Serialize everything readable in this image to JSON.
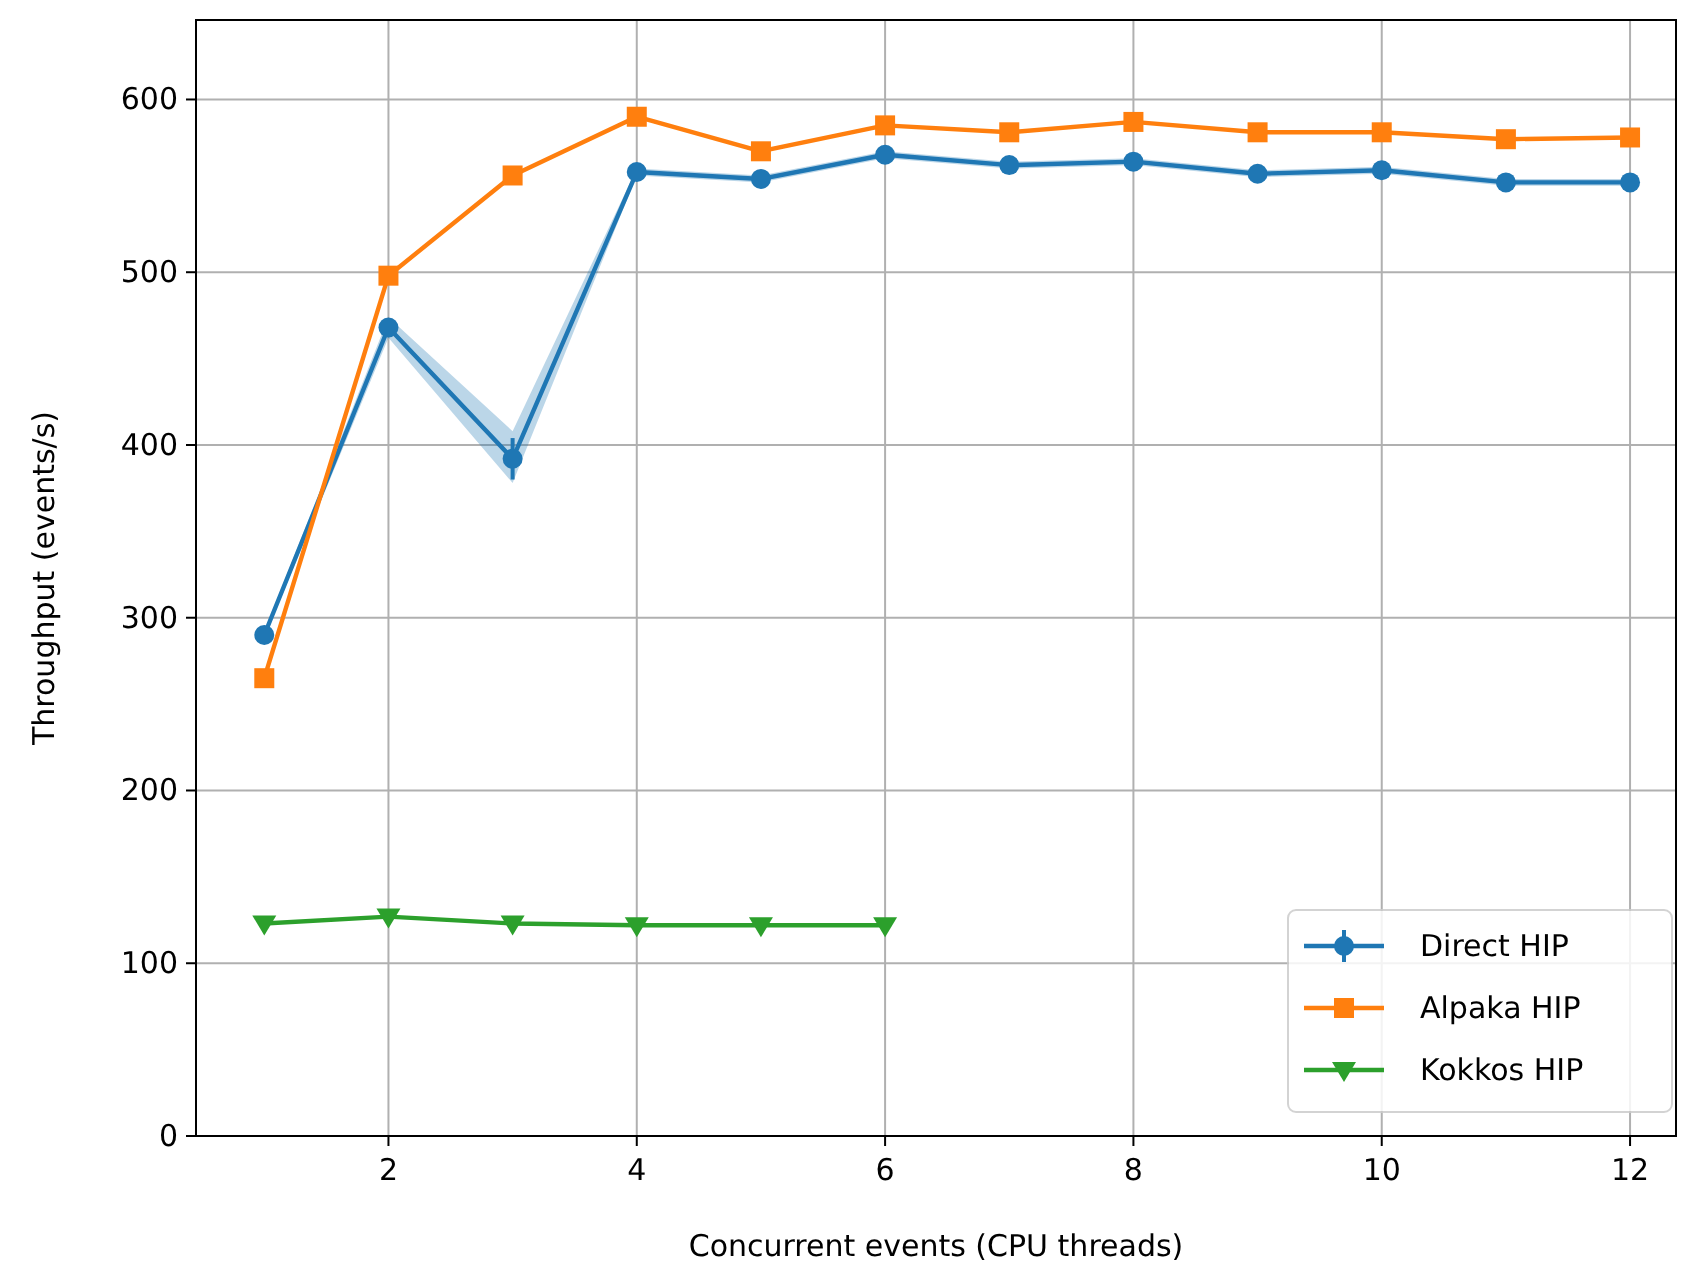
{
  "chart_data": {
    "type": "line",
    "xlabel": "Concurrent events (CPU threads)",
    "ylabel": "Throughput (events/s)",
    "xlim": [
      0.45,
      12.37
    ],
    "ylim": [
      0,
      646
    ],
    "xticks": [
      2,
      4,
      6,
      8,
      10,
      12
    ],
    "yticks": [
      0,
      100,
      200,
      300,
      400,
      500,
      600
    ],
    "grid": true,
    "legend": "bottom right",
    "line_style": "solid",
    "series": [
      {
        "name": "Direct HIP",
        "color": "#1f77b4",
        "marker": "circle",
        "x": [
          1,
          2,
          3,
          4,
          5,
          6,
          7,
          8,
          9,
          10,
          11,
          12
        ],
        "values": [
          290,
          468,
          392,
          558,
          554,
          568,
          562,
          564,
          557,
          559,
          552,
          552
        ],
        "errors": [
          null,
          5,
          12,
          null,
          null,
          null,
          null,
          null,
          null,
          null,
          null,
          null
        ],
        "lower": [
          288,
          462,
          378,
          556,
          552,
          566,
          560,
          562,
          555,
          557,
          550,
          550
        ],
        "upper": [
          292,
          474,
          408,
          560,
          556,
          570,
          564,
          566,
          559,
          561,
          554,
          554
        ]
      },
      {
        "name": "Alpaka HIP",
        "color": "#ff7f0e",
        "marker": "square",
        "x": [
          1,
          2,
          3,
          4,
          5,
          6,
          7,
          8,
          9,
          10,
          11,
          12
        ],
        "values": [
          265,
          498,
          556,
          590,
          570,
          585,
          581,
          587,
          581,
          581,
          577,
          578
        ]
      },
      {
        "name": "Kokkos HIP",
        "color": "#2ca02c",
        "marker": "triangle",
        "x": [
          1,
          2,
          3,
          4,
          5,
          6
        ],
        "values": [
          123,
          127,
          123,
          122,
          122,
          122
        ]
      }
    ]
  }
}
